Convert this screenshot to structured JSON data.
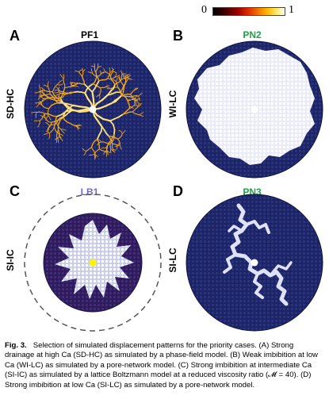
{
  "colorbar": {
    "min_label": "0",
    "max_label": "1"
  },
  "panels": [
    {
      "letter": "A",
      "title": "PF1",
      "title_color": "#000000",
      "side_label": "SD-HC"
    },
    {
      "letter": "B",
      "title": "PN2",
      "title_color": "#1fa14a",
      "side_label": "WI-LC"
    },
    {
      "letter": "C",
      "title": "LB1",
      "title_color": "#6a6ad0",
      "side_label": "SI-IC"
    },
    {
      "letter": "D",
      "title": "PN3",
      "title_color": "#1fa14a",
      "side_label": "SI-LC"
    }
  ],
  "caption": {
    "fig_label": "Fig. 3.",
    "main": "Selection of simulated displacement patterns for the priority cases.",
    "a_tag": "(A)",
    "a_text": "Strong drainage at high Ca (SD-HC) as simulated by a phase-field model.",
    "b_tag": "(B)",
    "b_text": "Weak imbibition at low Ca (WI-LC) as simulated by a pore-network model.",
    "c_tag": "(C)",
    "c_text": "Strong imbibition at intermediate Ca (SI-IC) as simulated by a lattice Boltzmann model at a reduced viscosity ratio (𝓜 = 40).",
    "d_tag": "(D)",
    "d_text": "Strong imbibition at low Ca (SI-LC) as simulated by a pore-network model."
  },
  "colors": {
    "disk": "#1c2466",
    "disk_dark": "#141a4e",
    "drainage": "#f2b21c",
    "imbibition": "#e8eaf8",
    "lb_background": "#3a2060"
  }
}
